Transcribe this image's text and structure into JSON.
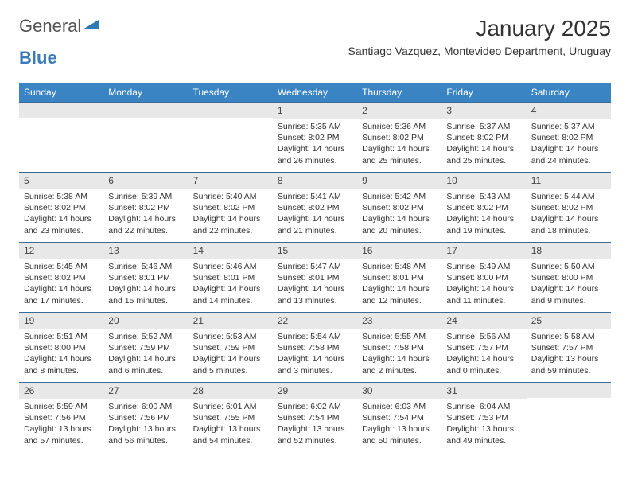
{
  "logo": {
    "text1": "General",
    "text2": "Blue"
  },
  "title": "January 2025",
  "location": "Santiago Vazquez, Montevideo Department, Uruguay",
  "colors": {
    "header_bg": "#3a84c4",
    "header_text": "#ffffff",
    "daynum_bg": "#e8e8e8",
    "border": "#3a6a98",
    "body_text": "#333333",
    "logo_gray": "#555555",
    "logo_blue": "#3a7ab8"
  },
  "fonts": {
    "title_size": 28,
    "location_size": 14,
    "header_size": 12,
    "daynum_size": 12,
    "data_size": 10.5
  },
  "dayNames": [
    "Sunday",
    "Monday",
    "Tuesday",
    "Wednesday",
    "Thursday",
    "Friday",
    "Saturday"
  ],
  "weeks": [
    [
      null,
      null,
      null,
      {
        "n": "1",
        "sr": "5:35 AM",
        "ss": "8:02 PM",
        "dl": "14 hours and 26 minutes."
      },
      {
        "n": "2",
        "sr": "5:36 AM",
        "ss": "8:02 PM",
        "dl": "14 hours and 25 minutes."
      },
      {
        "n": "3",
        "sr": "5:37 AM",
        "ss": "8:02 PM",
        "dl": "14 hours and 25 minutes."
      },
      {
        "n": "4",
        "sr": "5:37 AM",
        "ss": "8:02 PM",
        "dl": "14 hours and 24 minutes."
      }
    ],
    [
      {
        "n": "5",
        "sr": "5:38 AM",
        "ss": "8:02 PM",
        "dl": "14 hours and 23 minutes."
      },
      {
        "n": "6",
        "sr": "5:39 AM",
        "ss": "8:02 PM",
        "dl": "14 hours and 22 minutes."
      },
      {
        "n": "7",
        "sr": "5:40 AM",
        "ss": "8:02 PM",
        "dl": "14 hours and 22 minutes."
      },
      {
        "n": "8",
        "sr": "5:41 AM",
        "ss": "8:02 PM",
        "dl": "14 hours and 21 minutes."
      },
      {
        "n": "9",
        "sr": "5:42 AM",
        "ss": "8:02 PM",
        "dl": "14 hours and 20 minutes."
      },
      {
        "n": "10",
        "sr": "5:43 AM",
        "ss": "8:02 PM",
        "dl": "14 hours and 19 minutes."
      },
      {
        "n": "11",
        "sr": "5:44 AM",
        "ss": "8:02 PM",
        "dl": "14 hours and 18 minutes."
      }
    ],
    [
      {
        "n": "12",
        "sr": "5:45 AM",
        "ss": "8:02 PM",
        "dl": "14 hours and 17 minutes."
      },
      {
        "n": "13",
        "sr": "5:46 AM",
        "ss": "8:01 PM",
        "dl": "14 hours and 15 minutes."
      },
      {
        "n": "14",
        "sr": "5:46 AM",
        "ss": "8:01 PM",
        "dl": "14 hours and 14 minutes."
      },
      {
        "n": "15",
        "sr": "5:47 AM",
        "ss": "8:01 PM",
        "dl": "14 hours and 13 minutes."
      },
      {
        "n": "16",
        "sr": "5:48 AM",
        "ss": "8:01 PM",
        "dl": "14 hours and 12 minutes."
      },
      {
        "n": "17",
        "sr": "5:49 AM",
        "ss": "8:00 PM",
        "dl": "14 hours and 11 minutes."
      },
      {
        "n": "18",
        "sr": "5:50 AM",
        "ss": "8:00 PM",
        "dl": "14 hours and 9 minutes."
      }
    ],
    [
      {
        "n": "19",
        "sr": "5:51 AM",
        "ss": "8:00 PM",
        "dl": "14 hours and 8 minutes."
      },
      {
        "n": "20",
        "sr": "5:52 AM",
        "ss": "7:59 PM",
        "dl": "14 hours and 6 minutes."
      },
      {
        "n": "21",
        "sr": "5:53 AM",
        "ss": "7:59 PM",
        "dl": "14 hours and 5 minutes."
      },
      {
        "n": "22",
        "sr": "5:54 AM",
        "ss": "7:58 PM",
        "dl": "14 hours and 3 minutes."
      },
      {
        "n": "23",
        "sr": "5:55 AM",
        "ss": "7:58 PM",
        "dl": "14 hours and 2 minutes."
      },
      {
        "n": "24",
        "sr": "5:56 AM",
        "ss": "7:57 PM",
        "dl": "14 hours and 0 minutes."
      },
      {
        "n": "25",
        "sr": "5:58 AM",
        "ss": "7:57 PM",
        "dl": "13 hours and 59 minutes."
      }
    ],
    [
      {
        "n": "26",
        "sr": "5:59 AM",
        "ss": "7:56 PM",
        "dl": "13 hours and 57 minutes."
      },
      {
        "n": "27",
        "sr": "6:00 AM",
        "ss": "7:56 PM",
        "dl": "13 hours and 56 minutes."
      },
      {
        "n": "28",
        "sr": "6:01 AM",
        "ss": "7:55 PM",
        "dl": "13 hours and 54 minutes."
      },
      {
        "n": "29",
        "sr": "6:02 AM",
        "ss": "7:54 PM",
        "dl": "13 hours and 52 minutes."
      },
      {
        "n": "30",
        "sr": "6:03 AM",
        "ss": "7:54 PM",
        "dl": "13 hours and 50 minutes."
      },
      {
        "n": "31",
        "sr": "6:04 AM",
        "ss": "7:53 PM",
        "dl": "13 hours and 49 minutes."
      },
      null
    ]
  ],
  "labels": {
    "sunrise": "Sunrise: ",
    "sunset": "Sunset: ",
    "daylight": "Daylight: "
  }
}
